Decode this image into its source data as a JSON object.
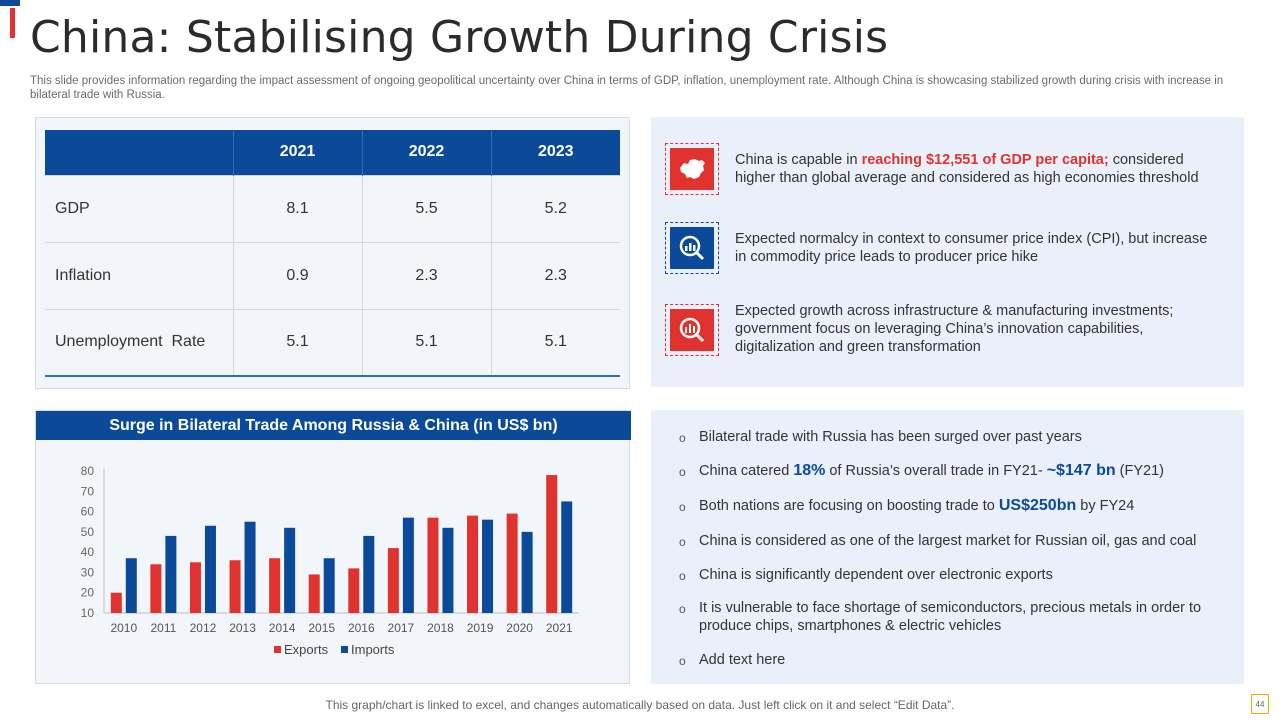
{
  "title": "China: Stabilising Growth During Crisis",
  "subtitle": "This slide provides information regarding the impact assessment of ongoing geopolitical uncertainty over China in terms of GDP, inflation, unemployment rate. Although China is showcasing stabilized growth during crisis with increase in bilateral trade with Russia.",
  "table": {
    "headers": [
      "",
      "2021",
      "2022",
      "2023"
    ],
    "rows": [
      {
        "label": "GDP",
        "values": [
          "8.1",
          "5.5",
          "5.2"
        ]
      },
      {
        "label": "Inflation",
        "values": [
          "0.9",
          "2.3",
          "2.3"
        ]
      },
      {
        "label": "Unemployment  Rate",
        "values": [
          "5.1",
          "5.1",
          "5.1"
        ]
      }
    ]
  },
  "info": [
    {
      "icon": "china-map-icon",
      "pre": "China is capable in ",
      "highlight": "reaching $12,551 of GDP per capita;",
      "post": " considered higher than global average and considered as high economies threshold"
    },
    {
      "icon": "chart-magnifier-icon",
      "pre": "Expected normalcy in context to consumer price index (CPI), but increase in commodity price leads to producer price hike",
      "highlight": "",
      "post": ""
    },
    {
      "icon": "investment-search-icon",
      "pre": "Expected growth across infrastructure & manufacturing investments; government focus on leveraging China’s innovation capabilities, digitalization and green transformation",
      "highlight": "",
      "post": ""
    }
  ],
  "bullets": {
    "b1": "Bilateral trade with Russia has been surged over past years",
    "b2_pre": "China catered ",
    "b2_h1": "18%",
    "b2_mid": " of Russia’s overall trade in FY21- ",
    "b2_h2": "~$147 bn",
    "b2_post": " (FY21)",
    "b3_pre": "Both nations are focusing on boosting trade to ",
    "b3_h": "US$250bn",
    "b3_post": " by FY24",
    "b4": "China is considered as one of the largest market for Russian oil, gas and coal",
    "b5": "China is significantly dependent over electronic exports",
    "b6": "It is vulnerable to face shortage of semiconductors, precious metals in order to produce chips, smartphones & electric vehicles",
    "b7": "Add text here"
  },
  "footer": "This graph/chart is linked to excel,  and changes automatically based on data. Just left click on it and select “Edit Data”.",
  "page_number": "44",
  "colors": {
    "exports": "#e0322f",
    "imports": "#0b4a99"
  },
  "chart_data": {
    "type": "bar",
    "title": "Surge in Bilateral Trade Among Russia & China (in US$ bn)",
    "categories": [
      "2010",
      "2011",
      "2012",
      "2013",
      "2014",
      "2015",
      "2016",
      "2017",
      "2018",
      "2019",
      "2020",
      "2021"
    ],
    "series": [
      {
        "name": "Exports",
        "values": [
          20,
          34,
          35,
          36,
          37,
          29,
          32,
          42,
          57,
          58,
          59,
          78
        ]
      },
      {
        "name": "Imports",
        "values": [
          37,
          48,
          53,
          55,
          52,
          37,
          48,
          57,
          52,
          56,
          50,
          65
        ]
      }
    ],
    "yticks": [
      10,
      20,
      30,
      40,
      50,
      60,
      70,
      80
    ],
    "ylim": [
      10,
      80
    ],
    "legend": "bottom"
  }
}
